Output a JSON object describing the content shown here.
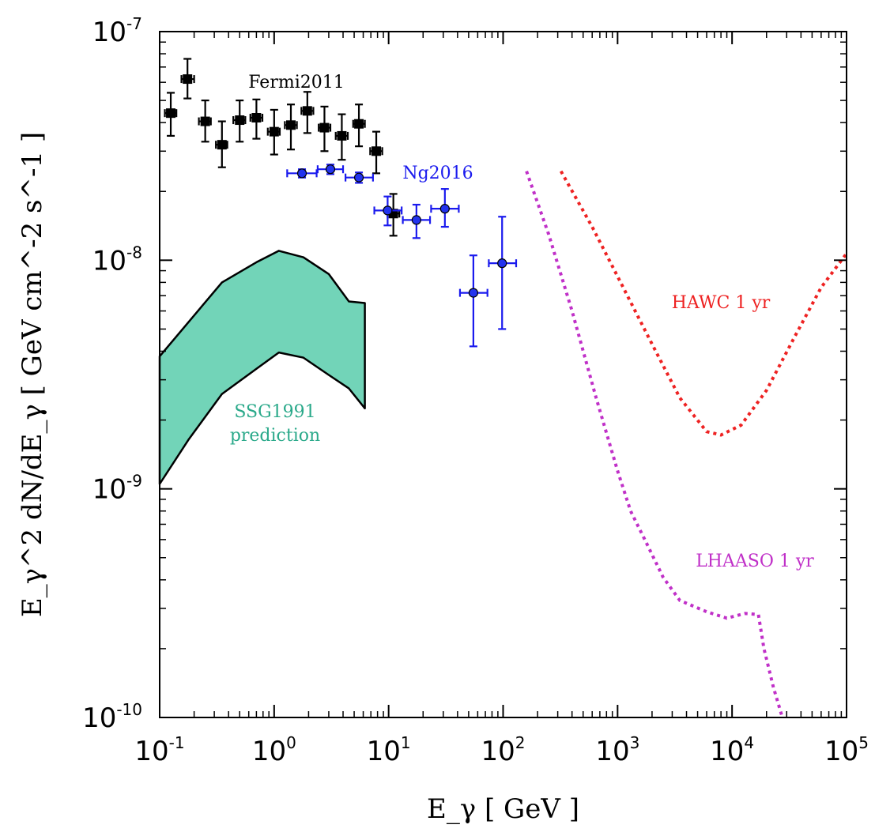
{
  "chart_data": {
    "type": "scatter",
    "xscale": "log",
    "yscale": "log",
    "xlim": [
      0.1,
      100000
    ],
    "ylim": [
      1e-10,
      1e-07
    ],
    "xlabel": "E_γ [ GeV ]",
    "ylabel": "E_γ^2 dN/dE_γ [ GeV cm^-2 s^-1 ]",
    "x_ticks": [
      {
        "base": "10",
        "exp": "-1",
        "value": 0.1
      },
      {
        "base": "10",
        "exp": "0",
        "value": 1
      },
      {
        "base": "10",
        "exp": "1",
        "value": 10
      },
      {
        "base": "10",
        "exp": "2",
        "value": 100
      },
      {
        "base": "10",
        "exp": "3",
        "value": 1000
      },
      {
        "base": "10",
        "exp": "4",
        "value": 10000
      },
      {
        "base": "10",
        "exp": "5",
        "value": 100000
      }
    ],
    "y_ticks": [
      {
        "base": "10",
        "exp": "-7",
        "value": 1e-07
      },
      {
        "base": "10",
        "exp": "-8",
        "value": 1e-08
      },
      {
        "base": "10",
        "exp": "-9",
        "value": 1e-09
      },
      {
        "base": "10",
        "exp": "-10",
        "value": 1e-10
      }
    ],
    "series": [
      {
        "name": "Fermi2011",
        "label": "Fermi2011",
        "color": "#000000",
        "marker": "square",
        "points": [
          {
            "x": 0.125,
            "y": 4.4e-08,
            "xlo": 0.111,
            "xhi": 0.14,
            "ylo": 3.5e-08,
            "yhi": 5.4e-08
          },
          {
            "x": 0.175,
            "y": 6.2e-08,
            "xlo": 0.155,
            "xhi": 0.2,
            "ylo": 5.1e-08,
            "yhi": 7.6e-08
          },
          {
            "x": 0.25,
            "y": 4.05e-08,
            "xlo": 0.22,
            "xhi": 0.28,
            "ylo": 3.3e-08,
            "yhi": 5e-08
          },
          {
            "x": 0.35,
            "y": 3.2e-08,
            "xlo": 0.31,
            "xhi": 0.39,
            "ylo": 2.55e-08,
            "yhi": 4.05e-08
          },
          {
            "x": 0.5,
            "y": 4.1e-08,
            "xlo": 0.44,
            "xhi": 0.56,
            "ylo": 3.3e-08,
            "yhi": 5e-08
          },
          {
            "x": 0.7,
            "y": 4.2e-08,
            "xlo": 0.62,
            "xhi": 0.79,
            "ylo": 3.4e-08,
            "yhi": 5.05e-08
          },
          {
            "x": 1.0,
            "y": 3.65e-08,
            "xlo": 0.88,
            "xhi": 1.12,
            "ylo": 2.9e-08,
            "yhi": 4.55e-08
          },
          {
            "x": 1.4,
            "y": 3.9e-08,
            "xlo": 1.24,
            "xhi": 1.58,
            "ylo": 3.05e-08,
            "yhi": 4.8e-08
          },
          {
            "x": 1.95,
            "y": 4.5e-08,
            "xlo": 1.73,
            "xhi": 2.2,
            "ylo": 3.6e-08,
            "yhi": 5.45e-08
          },
          {
            "x": 2.75,
            "y": 3.8e-08,
            "xlo": 2.45,
            "xhi": 3.1,
            "ylo": 3e-08,
            "yhi": 4.7e-08
          },
          {
            "x": 3.9,
            "y": 3.5e-08,
            "xlo": 3.45,
            "xhi": 4.4,
            "ylo": 2.75e-08,
            "yhi": 4.35e-08
          },
          {
            "x": 5.5,
            "y": 3.95e-08,
            "xlo": 4.9,
            "xhi": 6.2,
            "ylo": 3.15e-08,
            "yhi": 4.8e-08
          },
          {
            "x": 7.8,
            "y": 3e-08,
            "xlo": 6.9,
            "xhi": 8.8,
            "ylo": 2.4e-08,
            "yhi": 3.65e-08
          },
          {
            "x": 11,
            "y": 1.6e-08,
            "xlo": 9.8,
            "xhi": 12.4,
            "ylo": 1.28e-08,
            "yhi": 1.95e-08
          }
        ]
      },
      {
        "name": "Ng2016",
        "label": "Ng2016",
        "color": "#1a1aee",
        "marker": "circle",
        "points": [
          {
            "x": 1.75,
            "y": 2.4e-08,
            "xlo": 1.3,
            "xhi": 2.35,
            "ylo": 2.3e-08,
            "yhi": 2.5e-08
          },
          {
            "x": 3.1,
            "y": 2.5e-08,
            "xlo": 2.4,
            "xhi": 4.0,
            "ylo": 2.38e-08,
            "yhi": 2.62e-08
          },
          {
            "x": 5.5,
            "y": 2.3e-08,
            "xlo": 4.2,
            "xhi": 7.3,
            "ylo": 2.18e-08,
            "yhi": 2.42e-08
          },
          {
            "x": 9.8,
            "y": 1.65e-08,
            "xlo": 7.5,
            "xhi": 13,
            "ylo": 1.42e-08,
            "yhi": 1.9e-08
          },
          {
            "x": 17.5,
            "y": 1.5e-08,
            "xlo": 13.3,
            "xhi": 23,
            "ylo": 1.25e-08,
            "yhi": 1.75e-08
          },
          {
            "x": 31,
            "y": 1.68e-08,
            "xlo": 23.5,
            "xhi": 41,
            "ylo": 1.4e-08,
            "yhi": 2.05e-08
          },
          {
            "x": 55,
            "y": 7.2e-09,
            "xlo": 42,
            "xhi": 73,
            "ylo": 4.2e-09,
            "yhi": 1.05e-08
          },
          {
            "x": 98,
            "y": 9.7e-09,
            "xlo": 75,
            "xhi": 130,
            "ylo": 5e-09,
            "yhi": 1.55e-08
          }
        ]
      }
    ],
    "band": {
      "name": "SSG1991 prediction",
      "label_lines": [
        "SSG1991",
        "prediction"
      ],
      "color": "#72d4b8",
      "label_color": "#2aa98a",
      "upper": [
        [
          0.1,
          3.8e-09
        ],
        [
          0.35,
          8e-09
        ],
        [
          0.7,
          9.8e-09
        ],
        [
          1.1,
          1.1e-08
        ],
        [
          1.8,
          1.03e-08
        ],
        [
          3.0,
          8.7e-09
        ],
        [
          4.5,
          6.6e-09
        ],
        [
          6.2,
          6.5e-09
        ]
      ],
      "lower": [
        [
          0.1,
          1.05e-09
        ],
        [
          0.18,
          1.65e-09
        ],
        [
          0.35,
          2.6e-09
        ],
        [
          0.7,
          3.35e-09
        ],
        [
          1.1,
          3.95e-09
        ],
        [
          1.8,
          3.75e-09
        ],
        [
          3.0,
          3.15e-09
        ],
        [
          4.5,
          2.75e-09
        ],
        [
          6.2,
          2.25e-09
        ]
      ]
    },
    "sensitivity_curves": [
      {
        "name": "HAWC 1 yr",
        "label": "HAWC 1 yr",
        "color": "#ee2222",
        "style": "dotted",
        "points": [
          [
            320,
            2.45e-08
          ],
          [
            600,
            1.4e-08
          ],
          [
            1000,
            8.5e-09
          ],
          [
            2000,
            4.3e-09
          ],
          [
            3500,
            2.5e-09
          ],
          [
            6000,
            1.78e-09
          ],
          [
            8000,
            1.72e-09
          ],
          [
            12000,
            1.9e-09
          ],
          [
            20000,
            2.7e-09
          ],
          [
            35000,
            4.6e-09
          ],
          [
            60000,
            7.6e-09
          ],
          [
            100000,
            1.07e-08
          ]
        ]
      },
      {
        "name": "LHAASO 1 yr",
        "label": "LHAASO 1 yr",
        "color": "#c030c8",
        "style": "dotted",
        "points": [
          [
            160,
            2.45e-08
          ],
          [
            250,
            1.3e-08
          ],
          [
            400,
            6e-09
          ],
          [
            650,
            2.5e-09
          ],
          [
            1000,
            1.2e-09
          ],
          [
            1300,
            8e-10
          ],
          [
            1700,
            6.1e-10
          ],
          [
            2500,
            4.1e-10
          ],
          [
            3500,
            3.25e-10
          ],
          [
            6000,
            2.9e-10
          ],
          [
            9000,
            2.72e-10
          ],
          [
            13000,
            2.85e-10
          ],
          [
            17000,
            2.82e-10
          ],
          [
            19000,
            2e-10
          ],
          [
            23000,
            1.35e-10
          ],
          [
            27500,
            1e-10
          ]
        ]
      }
    ]
  }
}
